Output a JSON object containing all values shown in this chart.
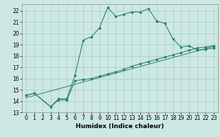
{
  "title": "",
  "xlabel": "Humidex (Indice chaleur)",
  "bg_color": "#cde8e4",
  "line_color": "#2a7f6f",
  "grid_color": "#aacfca",
  "xlim": [
    -0.5,
    23.5
  ],
  "ylim": [
    13,
    22.6
  ],
  "yticks": [
    13,
    14,
    15,
    16,
    17,
    18,
    19,
    20,
    21,
    22
  ],
  "xticks": [
    0,
    1,
    2,
    3,
    4,
    5,
    6,
    7,
    8,
    9,
    10,
    11,
    12,
    13,
    14,
    15,
    16,
    17,
    18,
    19,
    20,
    21,
    22,
    23
  ],
  "curve1_x": [
    0,
    1,
    3,
    4,
    5,
    6,
    7,
    8,
    9,
    10,
    11,
    12,
    13,
    14,
    15,
    16,
    17,
    18,
    19,
    20,
    21,
    22,
    23
  ],
  "curve1_y": [
    14.5,
    14.7,
    13.5,
    14.2,
    14.2,
    16.3,
    19.4,
    19.7,
    20.5,
    22.3,
    21.5,
    21.7,
    21.9,
    21.9,
    22.2,
    21.1,
    20.9,
    19.5,
    18.8,
    18.9,
    18.5,
    18.6,
    18.7
  ],
  "curve2_x": [
    0,
    1,
    3,
    4,
    5,
    6,
    7,
    8,
    9,
    10,
    11,
    12,
    13,
    14,
    15,
    16,
    17,
    18,
    19,
    20,
    21,
    22,
    23
  ],
  "curve2_y": [
    14.5,
    14.7,
    13.5,
    14.1,
    14.1,
    15.8,
    15.9,
    16.0,
    16.2,
    16.4,
    16.6,
    16.8,
    17.1,
    17.3,
    17.5,
    17.7,
    17.9,
    18.1,
    18.3,
    18.5,
    18.7,
    18.8,
    18.9
  ],
  "curve3_x": [
    0,
    23
  ],
  "curve3_y": [
    14.3,
    18.85
  ],
  "tick_fontsize": 5.5,
  "xlabel_fontsize": 6.5
}
